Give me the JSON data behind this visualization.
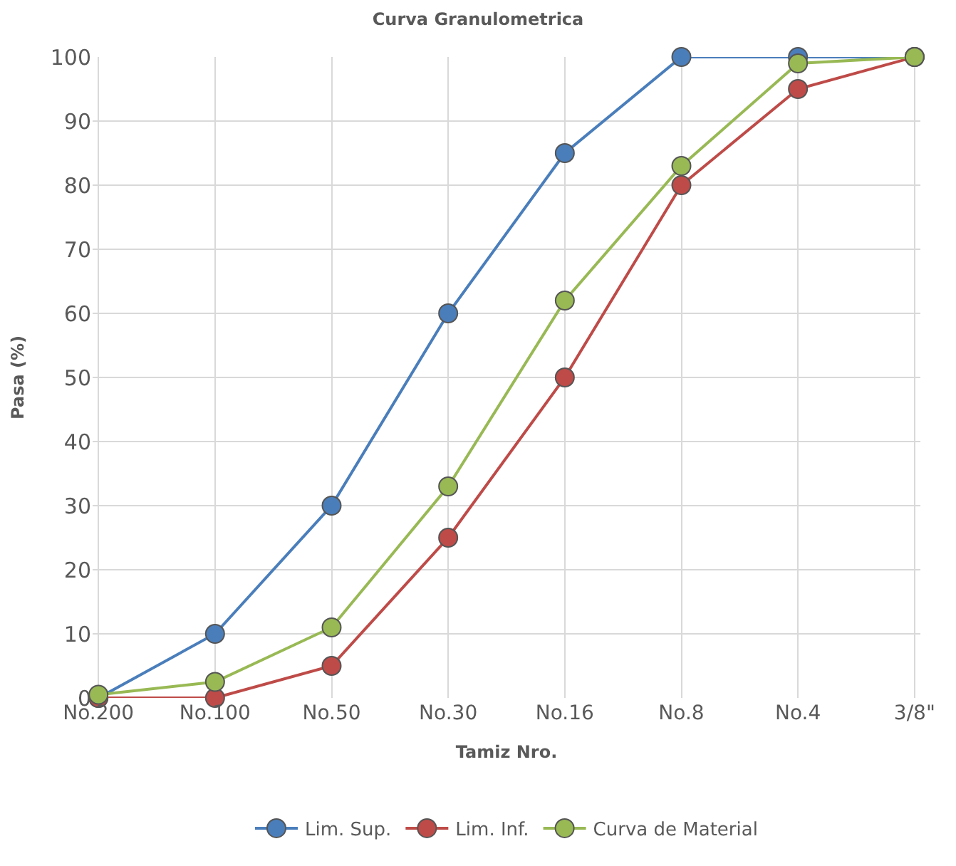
{
  "chart_data": {
    "type": "line",
    "title": "Curva Granulometrica",
    "xlabel": "Tamiz Nro.",
    "ylabel": "Pasa (%)",
    "categories": [
      "No.200",
      "No.100",
      "No.50",
      "No.30",
      "No.16",
      "No.8",
      "No.4",
      "3/8\""
    ],
    "series": [
      {
        "name": "Lim. Sup.",
        "color": "#4a7ebb",
        "values": [
          0,
          10,
          30,
          60,
          85,
          100,
          100,
          100
        ]
      },
      {
        "name": "Lim. Inf.",
        "color": "#be4b48",
        "values": [
          0,
          0,
          5,
          25,
          50,
          80,
          95,
          100
        ]
      },
      {
        "name": "Curva de Material",
        "color": "#98b954",
        "values": [
          0.5,
          2.5,
          11,
          33,
          62,
          83,
          99,
          100
        ]
      }
    ],
    "ylim": [
      0,
      100
    ],
    "yticks": [
      0,
      10,
      20,
      30,
      40,
      50,
      60,
      70,
      80,
      90,
      100
    ],
    "grid": true,
    "legend": "bottom",
    "marker": "circle",
    "line_style": "solid"
  }
}
